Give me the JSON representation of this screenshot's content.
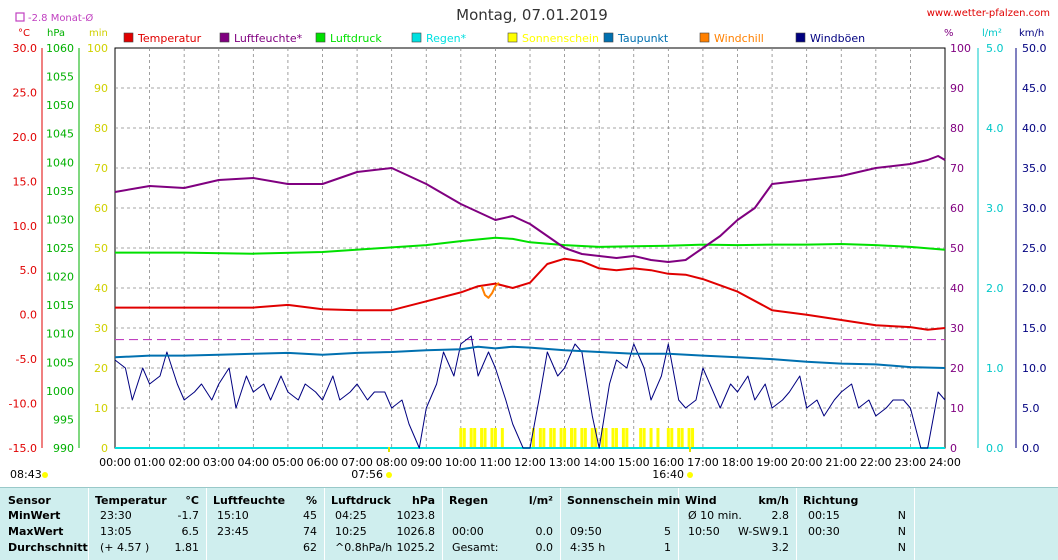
{
  "title": "Montag, 07.01.2019",
  "website": "www.wetter-pfalzen.com",
  "month_avg_label": "-2.8 Monat-Ø",
  "left_units": [
    "°C",
    "hPa",
    "min"
  ],
  "right_units": [
    "%",
    "l/m²",
    "km/h"
  ],
  "colors": {
    "temperature": "#e00000",
    "humidity": "#800080",
    "pressure": "#00e000",
    "rain": "#00e0e0",
    "sunshine": "#ffff00",
    "dewpoint": "#0070b0",
    "windchill": "#ff8000",
    "gusts": "#000080",
    "month_avg": "#c040c0"
  },
  "sunrise": "07:56",
  "sunset": "16:40",
  "now_time": "08:43",
  "chart_data": {
    "type": "line",
    "title": "Montag, 07.01.2019",
    "x_ticks": [
      "00:00",
      "01:00",
      "02:00",
      "03:00",
      "04:00",
      "05:00",
      "06:00",
      "07:00",
      "08:00",
      "09:00",
      "10:00",
      "11:00",
      "12:00",
      "13:00",
      "14:00",
      "15:00",
      "16:00",
      "17:00",
      "18:00",
      "19:00",
      "20:00",
      "21:00",
      "22:00",
      "23:00",
      "24:00"
    ],
    "axes": {
      "temp_c": {
        "range": [
          -15,
          30
        ],
        "ticks": [
          "30.0",
          "25.0",
          "20.0",
          "15.0",
          "10.0",
          "5.0",
          "0.0",
          "-5.0",
          "-10.0",
          "-15.0"
        ]
      },
      "pressure_hpa": {
        "range": [
          990,
          1060
        ],
        "ticks": [
          "1060",
          "1055",
          "1050",
          "1045",
          "1040",
          "1035",
          "1030",
          "1025",
          "1020",
          "1015",
          "1010",
          "1005",
          "1000",
          "995",
          "990"
        ]
      },
      "minutes": {
        "range": [
          0,
          100
        ],
        "ticks": [
          "100",
          "90",
          "80",
          "70",
          "60",
          "50",
          "40",
          "30",
          "20",
          "10",
          "0"
        ]
      },
      "humidity_pct": {
        "range": [
          0,
          100
        ],
        "ticks": [
          "100",
          "90",
          "80",
          "70",
          "60",
          "50",
          "40",
          "30",
          "20",
          "10",
          "0"
        ]
      },
      "rain_lm2": {
        "range": [
          0,
          5
        ],
        "ticks": [
          "5.0",
          "4.0",
          "3.0",
          "2.0",
          "1.0",
          "0.0"
        ]
      },
      "wind_kmh": {
        "range": [
          0,
          50
        ],
        "ticks": [
          "50.0",
          "45.0",
          "40.0",
          "35.0",
          "30.0",
          "25.0",
          "20.0",
          "15.0",
          "10.0",
          "5.0",
          "0.0"
        ]
      }
    },
    "legend": [
      {
        "name": "Temperatur",
        "color": "#e00000"
      },
      {
        "name": "Luftfeuchte*",
        "color": "#800080"
      },
      {
        "name": "Luftdruck",
        "color": "#00e000"
      },
      {
        "name": "Regen*",
        "color": "#00e0e0"
      },
      {
        "name": "Sonnenschein",
        "color": "#ffff00"
      },
      {
        "name": "Taupunkt",
        "color": "#0070b0"
      },
      {
        "name": "Windchill",
        "color": "#ff8000"
      },
      {
        "name": "Windböen",
        "color": "#000080"
      }
    ],
    "month_avg_temp": -2.8,
    "series": [
      {
        "name": "Temperatur",
        "axis": "temp_c",
        "x": [
          0,
          1,
          2,
          3,
          4,
          5,
          6,
          7,
          8,
          9,
          10,
          10.5,
          11,
          11.5,
          12,
          12.5,
          13,
          13.5,
          14,
          14.5,
          15,
          15.5,
          16,
          16.5,
          17,
          18,
          19,
          20,
          21,
          22,
          23,
          23.5,
          24
        ],
        "y": [
          0.8,
          0.8,
          0.8,
          0.8,
          0.8,
          1.1,
          0.6,
          0.5,
          0.5,
          1.5,
          2.5,
          3.2,
          3.5,
          3.0,
          3.6,
          5.7,
          6.3,
          6.0,
          5.2,
          5.0,
          5.2,
          5.0,
          4.6,
          4.5,
          4.0,
          2.6,
          0.5,
          0.0,
          -0.6,
          -1.2,
          -1.4,
          -1.7,
          -1.5
        ]
      },
      {
        "name": "Luftfeuchte*",
        "axis": "humidity_pct",
        "x": [
          0,
          1,
          2,
          3,
          4,
          5,
          6,
          7,
          8,
          9,
          10,
          10.5,
          11,
          11.5,
          12,
          12.5,
          13,
          13.5,
          14,
          14.5,
          15,
          15.5,
          16,
          16.5,
          17,
          17.5,
          18,
          18.5,
          19,
          20,
          21,
          22,
          23,
          23.5,
          23.8,
          24
        ],
        "y": [
          64,
          65.5,
          65,
          67,
          67.5,
          66,
          66,
          69,
          70,
          66,
          61,
          59,
          57,
          58,
          56,
          53,
          50,
          48.5,
          48,
          47.5,
          48,
          47,
          46.5,
          47,
          50,
          53,
          57,
          60,
          66,
          67,
          68,
          70,
          71,
          72,
          73,
          72
        ]
      },
      {
        "name": "Luftdruck",
        "axis": "pressure_hpa",
        "x": [
          0,
          2,
          4,
          6,
          8,
          9,
          10,
          11,
          11.5,
          12,
          13,
          14,
          15,
          16,
          17,
          18,
          19,
          20,
          21,
          22,
          23,
          24
        ],
        "y": [
          1024.2,
          1024.2,
          1024.0,
          1024.3,
          1025.1,
          1025.5,
          1026.2,
          1026.8,
          1026.6,
          1026.0,
          1025.5,
          1025.2,
          1025.3,
          1025.4,
          1025.6,
          1025.5,
          1025.6,
          1025.6,
          1025.7,
          1025.5,
          1025.2,
          1024.7
        ]
      },
      {
        "name": "Taupunkt",
        "axis": "temp_c",
        "x": [
          0,
          1,
          2,
          3,
          4,
          5,
          6,
          7,
          8,
          9,
          10,
          10.5,
          11,
          11.5,
          12,
          13,
          14,
          15,
          16,
          17,
          18,
          19,
          20,
          21,
          22,
          23,
          24
        ],
        "y": [
          -4.8,
          -4.6,
          -4.6,
          -4.5,
          -4.4,
          -4.3,
          -4.5,
          -4.3,
          -4.2,
          -4.0,
          -3.9,
          -3.6,
          -3.8,
          -3.6,
          -3.7,
          -4.0,
          -4.2,
          -4.4,
          -4.4,
          -4.6,
          -4.8,
          -5.0,
          -5.3,
          -5.5,
          -5.6,
          -5.9,
          -6.0
        ]
      },
      {
        "name": "Windchill",
        "axis": "temp_c",
        "x": [
          10.6,
          10.7,
          10.8,
          10.9,
          11.0,
          11.1
        ],
        "y": [
          3.2,
          2.2,
          1.9,
          2.4,
          3.2,
          3.6
        ]
      },
      {
        "name": "Windböen",
        "axis": "wind_kmh",
        "x": [
          0,
          0.3,
          0.5,
          0.8,
          1.0,
          1.3,
          1.5,
          1.8,
          2.0,
          2.3,
          2.5,
          2.8,
          3.0,
          3.3,
          3.5,
          3.8,
          4.0,
          4.3,
          4.5,
          4.8,
          5.0,
          5.3,
          5.5,
          5.8,
          6.0,
          6.3,
          6.5,
          6.8,
          7.0,
          7.3,
          7.5,
          7.8,
          8.0,
          8.3,
          8.5,
          8.8,
          9.0,
          9.3,
          9.5,
          9.8,
          10.0,
          10.3,
          10.5,
          10.8,
          11.0,
          11.3,
          11.5,
          11.8,
          12.0,
          12.3,
          12.5,
          12.8,
          13.0,
          13.3,
          13.5,
          13.8,
          14.0,
          14.3,
          14.5,
          14.8,
          15.0,
          15.3,
          15.5,
          15.8,
          16.0,
          16.3,
          16.5,
          16.8,
          17.0,
          17.3,
          17.5,
          17.8,
          18.0,
          18.3,
          18.5,
          18.8,
          19.0,
          19.3,
          19.5,
          19.8,
          20.0,
          20.3,
          20.5,
          20.8,
          21.0,
          21.3,
          21.5,
          21.8,
          22.0,
          22.3,
          22.5,
          22.8,
          23.0,
          23.3,
          23.5,
          23.8,
          24.0
        ],
        "y": [
          11,
          10,
          6,
          10,
          8,
          9,
          12,
          8,
          6,
          7,
          8,
          6,
          8,
          10,
          5,
          9,
          7,
          8,
          6,
          9,
          7,
          6,
          8,
          7,
          6,
          9,
          6,
          7,
          8,
          6,
          7,
          7,
          5,
          6,
          3,
          0,
          5,
          8,
          12,
          9,
          13,
          14,
          9,
          12,
          10,
          6,
          3,
          0,
          0,
          7,
          12,
          9,
          10,
          13,
          12,
          4,
          0,
          8,
          11,
          10,
          13,
          10,
          6,
          9,
          13,
          6,
          5,
          6,
          10,
          7,
          5,
          8,
          7,
          9,
          6,
          8,
          5,
          6,
          7,
          9,
          5,
          6,
          4,
          6,
          7,
          8,
          5,
          6,
          4,
          5,
          6,
          6,
          5,
          0,
          0,
          7,
          6
        ]
      },
      {
        "name": "Sonnenschein",
        "axis": "minutes",
        "type": "bar",
        "x": [
          10.0,
          10.1,
          10.3,
          10.4,
          10.6,
          10.7,
          10.9,
          11.0,
          11.2,
          12.1,
          12.3,
          12.4,
          12.6,
          12.7,
          12.9,
          13.0,
          13.2,
          13.3,
          13.5,
          13.6,
          13.8,
          13.9,
          14.1,
          14.2,
          14.4,
          14.5,
          14.7,
          14.8,
          15.2,
          15.3,
          15.5,
          15.7,
          16.0,
          16.1,
          16.3,
          16.4,
          16.6,
          16.7
        ],
        "values": [
          5,
          5,
          5,
          5,
          5,
          5,
          5,
          5,
          5,
          5,
          5,
          5,
          5,
          5,
          5,
          5,
          5,
          5,
          5,
          5,
          5,
          5,
          5,
          5,
          5,
          5,
          5,
          5,
          5,
          5,
          5,
          5,
          5,
          5,
          5,
          5,
          5,
          5
        ]
      },
      {
        "name": "Regen*",
        "axis": "rain_lm2",
        "x": [
          0,
          24
        ],
        "y": [
          0,
          0
        ]
      }
    ]
  },
  "stats": {
    "headers": {
      "sensor": "Sensor",
      "temperature": "Temperatur",
      "temperature_unit": "°C",
      "humidity": "Luftfeuchte",
      "humidity_unit": "%",
      "pressure": "Luftdruck",
      "pressure_unit": "hPa",
      "rain": "Regen",
      "rain_unit": "l/m²",
      "sunshine": "Sonnenschein min",
      "wind": "Wind",
      "wind_unit": "km/h",
      "direction": "Richtung"
    },
    "rows": [
      {
        "label": "MinWert",
        "temp_time": "23:30",
        "temp": "-1.7",
        "hum_time": "15:10",
        "hum": "45",
        "press_time": "04:25",
        "press": "1023.8",
        "rain_time": "",
        "rain": "",
        "sun_time": "",
        "sun": "",
        "wind_time": "Ø 10 min.",
        "wind_dir": "",
        "wind": "2.8",
        "dir_time": "00:15",
        "dir": "N"
      },
      {
        "label": "MaxWert",
        "temp_time": "13:05",
        "temp": "6.5",
        "hum_time": "23:45",
        "hum": "74",
        "press_time": "10:25",
        "press": "1026.8",
        "rain_time": "00:00",
        "rain": "0.0",
        "sun_time": "09:50",
        "sun": "5",
        "wind_time": "10:50",
        "wind_dir": "W-SW",
        "wind": "9.1",
        "dir_time": "00:30",
        "dir": "N"
      },
      {
        "label": "Durchschnitt",
        "temp_time": "(+ 4.57 )",
        "temp": "1.81",
        "hum_time": "",
        "hum": "62",
        "press_time": "^0.8hPa/h",
        "press": "1025.2",
        "rain_time": "Gesamt:",
        "rain": "0.0",
        "sun_time": "4:35 h",
        "sun": "1",
        "wind_time": "",
        "wind_dir": "",
        "wind": "3.2",
        "dir_time": "",
        "dir": "N"
      }
    ]
  }
}
